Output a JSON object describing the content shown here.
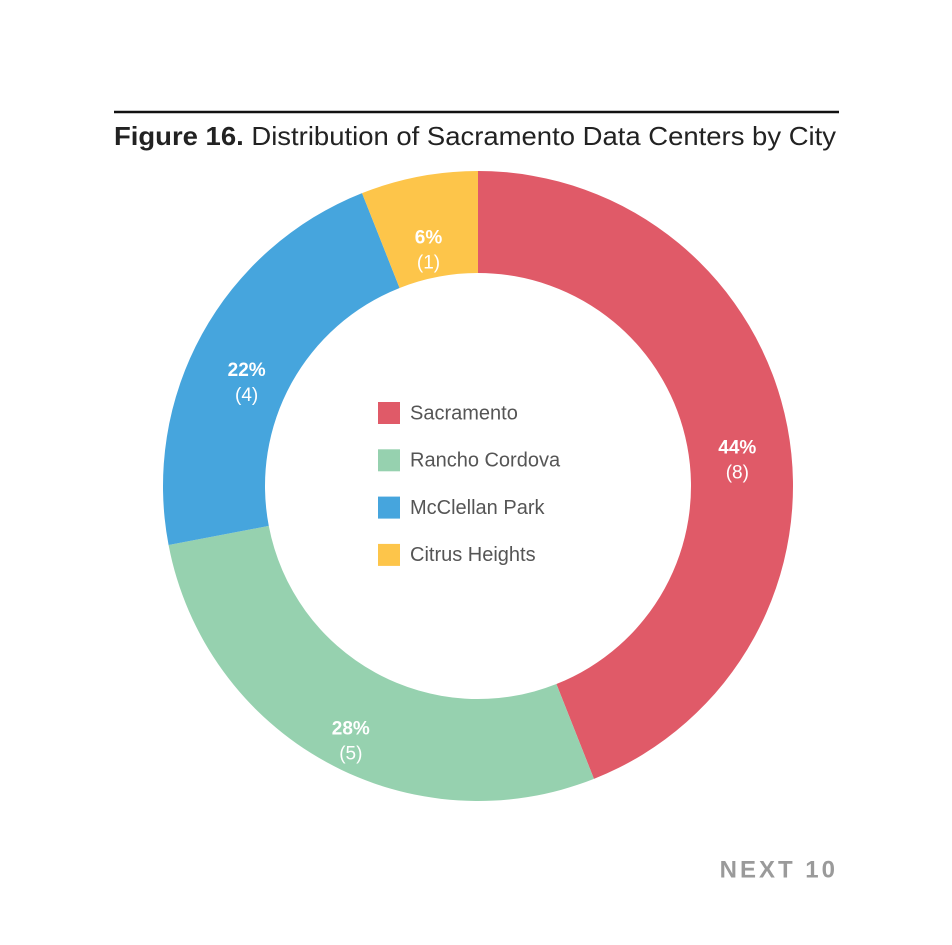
{
  "chart_data": {
    "type": "pie",
    "figure_label": "Figure 16.",
    "title": "Distribution of Sacramento Data Centers by City",
    "categories": [
      "Sacramento",
      "Rancho Cordova",
      "McClellan Park",
      "Citrus Heights"
    ],
    "values": [
      44,
      28,
      22,
      6
    ],
    "value_labels": [
      "44%",
      "28%",
      "22%",
      "6%"
    ],
    "counts": [
      8,
      5,
      4,
      1
    ],
    "count_labels": [
      "(8)",
      "(5)",
      "(4)",
      "(1)"
    ],
    "colors": [
      "#e05a68",
      "#96d1af",
      "#46a5dd",
      "#fdc54a"
    ],
    "source": "NEXT 10"
  }
}
